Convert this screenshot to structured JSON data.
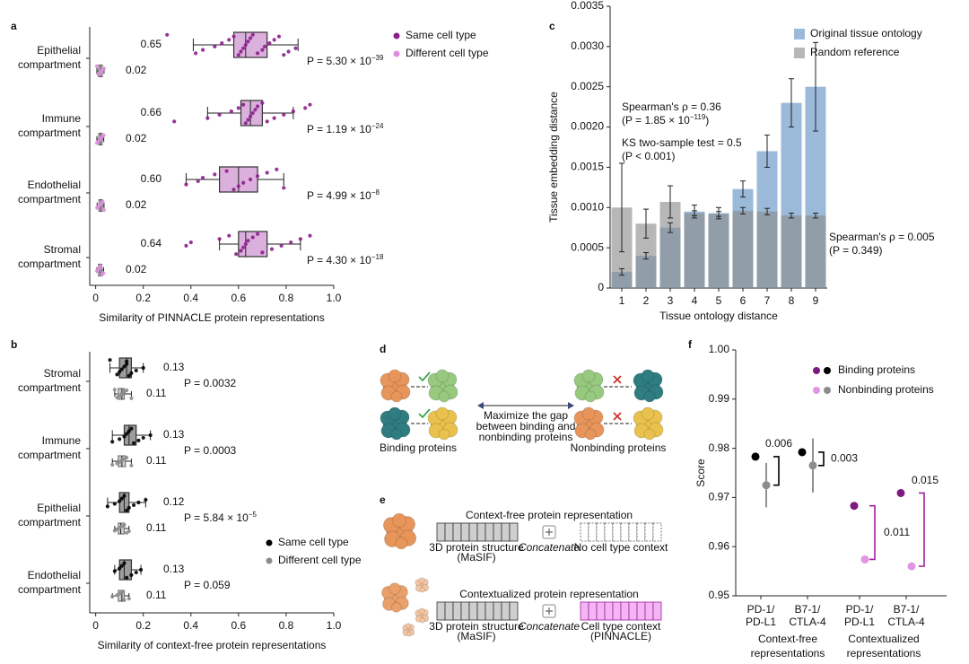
{
  "chart_data": [
    {
      "type": "box",
      "label": "a",
      "xlabel": "Similarity of PINNACLE protein representations",
      "categories": [
        "Epithelial\ncompartment",
        "Immune\ncompartment",
        "Endothelial\ncompartment",
        "Stromal\ncompartment"
      ],
      "series": [
        {
          "name": "Same cell type",
          "color": "#8b1f8b",
          "box_fill": "#dcb0dc",
          "mean_labels": [
            "0.65",
            "0.66",
            "0.60",
            "0.64"
          ],
          "boxes": [
            {
              "whislo": 0.41,
              "q1": 0.58,
              "med": 0.63,
              "q3": 0.72,
              "whishi": 0.85,
              "points": [
                0.3,
                0.42,
                0.45,
                0.5,
                0.53,
                0.56,
                0.58,
                0.6,
                0.61,
                0.62,
                0.63,
                0.64,
                0.65,
                0.66,
                0.68,
                0.7,
                0.71,
                0.73,
                0.75,
                0.77,
                0.79,
                0.81,
                0.84
              ]
            },
            {
              "whislo": 0.47,
              "q1": 0.61,
              "med": 0.65,
              "q3": 0.7,
              "whishi": 0.83,
              "points": [
                0.33,
                0.47,
                0.52,
                0.57,
                0.6,
                0.62,
                0.63,
                0.64,
                0.65,
                0.66,
                0.67,
                0.68,
                0.7,
                0.72,
                0.75,
                0.79,
                0.83,
                0.88,
                0.9
              ]
            },
            {
              "whislo": 0.38,
              "q1": 0.52,
              "med": 0.6,
              "q3": 0.68,
              "whishi": 0.79,
              "points": [
                0.38,
                0.43,
                0.45,
                0.5,
                0.55,
                0.58,
                0.6,
                0.62,
                0.65,
                0.68,
                0.72,
                0.76,
                0.79
              ]
            },
            {
              "whislo": 0.52,
              "q1": 0.6,
              "med": 0.63,
              "q3": 0.72,
              "whishi": 0.86,
              "points": [
                0.38,
                0.4,
                0.52,
                0.56,
                0.59,
                0.61,
                0.62,
                0.63,
                0.64,
                0.66,
                0.68,
                0.7,
                0.74,
                0.78,
                0.82,
                0.86,
                0.9
              ]
            }
          ]
        },
        {
          "name": "Different cell type",
          "color": "#df8ddf",
          "box_fill": "#e6e6e6",
          "mean_labels": [
            "0.02",
            "0.02",
            "0.02",
            "0.02"
          ],
          "boxes": [
            {
              "whislo": 0.005,
              "q1": 0.012,
              "med": 0.02,
              "q3": 0.028,
              "whishi": 0.035,
              "points": [
                0.005,
                0.012,
                0.018,
                0.022,
                0.028,
                0.035
              ]
            },
            {
              "whislo": 0.005,
              "q1": 0.013,
              "med": 0.02,
              "q3": 0.027,
              "whishi": 0.034,
              "points": [
                0.005,
                0.011,
                0.017,
                0.021,
                0.027,
                0.034
              ]
            },
            {
              "whislo": 0.006,
              "q1": 0.014,
              "med": 0.021,
              "q3": 0.028,
              "whishi": 0.035,
              "points": [
                0.006,
                0.013,
                0.019,
                0.023,
                0.029,
                0.035
              ]
            },
            {
              "whislo": 0.005,
              "q1": 0.012,
              "med": 0.019,
              "q3": 0.026,
              "whishi": 0.033,
              "points": [
                0.005,
                0.012,
                0.017,
                0.021,
                0.026,
                0.033
              ]
            }
          ]
        }
      ],
      "p_values": [
        {
          "text": "P = 5.30 × 10",
          "sup": "−39"
        },
        {
          "text": "P = 1.19 × 10",
          "sup": "−24"
        },
        {
          "text": "P = 4.99 × 10",
          "sup": "−8"
        },
        {
          "text": "P = 4.30 × 10",
          "sup": "−18"
        }
      ],
      "xlim": [
        -0.025,
        1.0
      ],
      "xticks": [
        0,
        0.2,
        0.4,
        0.6,
        0.8,
        {
          "value": 1,
          "label": "1.0"
        }
      ]
    },
    {
      "type": "box",
      "label": "b",
      "xlabel": "Similarity of context-free protein representations",
      "categories": [
        "Stromal\ncompartment",
        "Immune\ncompartment",
        "Epithelial\ncompartment",
        "Endothelial\ncompartment"
      ],
      "series": [
        {
          "name": "Same cell type",
          "color": "#000000",
          "box_fill": "#9c9c9c",
          "mean_labels": [
            "0.13",
            "0.13",
            "0.12",
            "0.13"
          ],
          "boxes": [
            {
              "whislo": 0.06,
              "q1": 0.1,
              "med": 0.13,
              "q3": 0.15,
              "whishi": 0.2,
              "points": [
                0.06,
                0.09,
                0.1,
                0.11,
                0.12,
                0.13,
                0.13,
                0.14,
                0.15,
                0.17,
                0.2
              ]
            },
            {
              "whislo": 0.07,
              "q1": 0.12,
              "med": 0.14,
              "q3": 0.17,
              "whishi": 0.23,
              "points": [
                0.07,
                0.1,
                0.12,
                0.13,
                0.14,
                0.15,
                0.16,
                0.18,
                0.2,
                0.23
              ]
            },
            {
              "whislo": 0.05,
              "q1": 0.1,
              "med": 0.12,
              "q3": 0.14,
              "whishi": 0.21,
              "points": [
                0.05,
                0.08,
                0.1,
                0.11,
                0.12,
                0.13,
                0.14,
                0.16,
                0.18,
                0.21
              ]
            },
            {
              "whislo": 0.08,
              "q1": 0.1,
              "med": 0.12,
              "q3": 0.15,
              "whishi": 0.19,
              "points": [
                0.08,
                0.1,
                0.11,
                0.12,
                0.13,
                0.15,
                0.17,
                0.19
              ]
            }
          ]
        },
        {
          "name": "Different cell type",
          "color": "#8c8c8c",
          "box_fill": "#cfcfcf",
          "mean_labels": [
            "0.11",
            "0.11",
            "0.11",
            "0.11"
          ],
          "boxes": [
            {
              "whislo": 0.08,
              "q1": 0.095,
              "med": 0.11,
              "q3": 0.12,
              "whishi": 0.15,
              "points": [
                0.08,
                0.09,
                0.1,
                0.11,
                0.11,
                0.12,
                0.13,
                0.15
              ]
            },
            {
              "whislo": 0.07,
              "q1": 0.095,
              "med": 0.11,
              "q3": 0.125,
              "whishi": 0.15,
              "points": [
                0.07,
                0.09,
                0.1,
                0.11,
                0.12,
                0.13,
                0.15
              ]
            },
            {
              "whislo": 0.08,
              "q1": 0.095,
              "med": 0.105,
              "q3": 0.12,
              "whishi": 0.14,
              "points": [
                0.08,
                0.09,
                0.1,
                0.11,
                0.12,
                0.13,
                0.14
              ]
            },
            {
              "whislo": 0.07,
              "q1": 0.095,
              "med": 0.11,
              "q3": 0.12,
              "whishi": 0.14,
              "points": [
                0.07,
                0.09,
                0.1,
                0.11,
                0.12,
                0.14
              ]
            }
          ]
        }
      ],
      "p_values": [
        {
          "text": "P = 0.0032"
        },
        {
          "text": "P = 0.0003"
        },
        {
          "text": "P = 5.84 × 10",
          "sup": "−5"
        },
        {
          "text": "P = 0.059"
        }
      ],
      "xlim": [
        -0.025,
        1.0
      ],
      "xticks": [
        0,
        0.2,
        0.4,
        0.6,
        0.8,
        {
          "value": 1,
          "label": "1.0"
        }
      ]
    },
    {
      "type": "bar",
      "label": "c",
      "xlabel": "Tissue ontology distance",
      "ylabel": "Tissue embedding distance",
      "categories": [
        "1",
        "2",
        "3",
        "4",
        "5",
        "6",
        "7",
        "8",
        "9"
      ],
      "series": [
        {
          "name": "Original tissue ontology",
          "color": "#5d8fc2",
          "values": [
            0.0002,
            0.0004,
            0.00075,
            0.00095,
            0.00093,
            0.00123,
            0.0017,
            0.0023,
            0.0025
          ],
          "errors": [
            4e-05,
            4e-05,
            6e-05,
            8e-05,
            7e-05,
            0.0001,
            0.0002,
            0.0003,
            0.00055
          ]
        },
        {
          "name": "Random reference",
          "color": "#8a8a8a",
          "values": [
            0.001,
            0.0008,
            0.00107,
            0.00093,
            0.00092,
            0.00096,
            0.00095,
            0.0009,
            0.0009
          ],
          "errors": [
            0.00055,
            0.00018,
            0.0002,
            3e-05,
            3e-05,
            4e-05,
            4e-05,
            3e-05,
            3e-05
          ]
        }
      ],
      "annotations": [
        {
          "text": "Spearman's ρ = 0.36",
          "color": "#4a88c2"
        },
        {
          "text": "(P = 1.85 × 10",
          "sup": "−119",
          "end": ")",
          "color": "#4a88c2"
        },
        {
          "text": "KS two-sample test = 0.5",
          "color": "#4a88c2"
        },
        {
          "text": "(P < 0.001)",
          "color": "#4a88c2"
        },
        {
          "text": "Spearman's ρ = 0.005",
          "color": "#a8a8a8"
        },
        {
          "text": "(P = 0.349)",
          "color": "#a8a8a8"
        }
      ],
      "ylim": [
        0,
        0.0035
      ],
      "yticks": [
        0,
        0.0005,
        {
          "value": 0.001,
          "label": "0.0010"
        },
        0.0015,
        {
          "value": 0.002,
          "label": "0.0020"
        },
        0.0025,
        {
          "value": 0.003,
          "label": "0.0030"
        },
        0.0035
      ]
    },
    {
      "type": "scatter",
      "label": "f",
      "ylabel": "Score",
      "categories": [
        "PD-1/\nPD-L1",
        "B7-1/\nCTLA-4",
        "PD-1/\nPD-L1",
        "B7-1/\nCTLA-4"
      ],
      "groups": [
        "Context-free\nrepresentations",
        "Contextualized\nrepresentations"
      ],
      "series": [
        {
          "name": "Binding proteins",
          "colors": [
            "#000000",
            "#000000",
            "#7e1a7e",
            "#7e1a7e"
          ],
          "values": [
            0.9783,
            0.9792,
            0.9683,
            0.9709
          ],
          "errors": [
            null,
            null,
            0.0007,
            0.0008
          ]
        },
        {
          "name": "Nonbinding proteins",
          "colors": [
            "#8c8c8c",
            "#8c8c8c",
            "#e394e3",
            "#e394e3"
          ],
          "values": [
            0.9725,
            0.9765,
            0.9574,
            0.956
          ],
          "errors": [
            0.0045,
            0.0055,
            null,
            null
          ]
        }
      ],
      "brackets": [
        {
          "label": "0.006",
          "color": "#000000"
        },
        {
          "label": "0.003",
          "color": "#000000"
        },
        {
          "label": "0.011",
          "color": "#a020a0"
        },
        {
          "label": "0.015",
          "color": "#a020a0"
        }
      ],
      "ylim": [
        0.95,
        1.0
      ],
      "yticks": [
        0.95,
        0.96,
        0.97,
        0.98,
        0.99,
        {
          "value": 1,
          "label": "1.00"
        }
      ]
    }
  ],
  "diagram_d": {
    "label": "d",
    "center_text": [
      "Maximize the gap",
      "between binding and",
      "nonbinding proteins"
    ],
    "left_caption": "Binding proteins",
    "right_caption": "Nonbinding proteins"
  },
  "diagram_e": {
    "label": "e",
    "rows": [
      {
        "title": "Context-free protein representation",
        "structure": [
          "3D protein structure",
          "(MaSIF)"
        ],
        "operation": "Concatenate",
        "context": [
          "No cell type context"
        ]
      },
      {
        "title": "Contextualized protein representation",
        "structure": [
          "3D protein structure",
          "(MaSIF)"
        ],
        "operation": "Concatenate",
        "context": [
          "Cell type context",
          "(PINNACLE)"
        ]
      }
    ]
  }
}
